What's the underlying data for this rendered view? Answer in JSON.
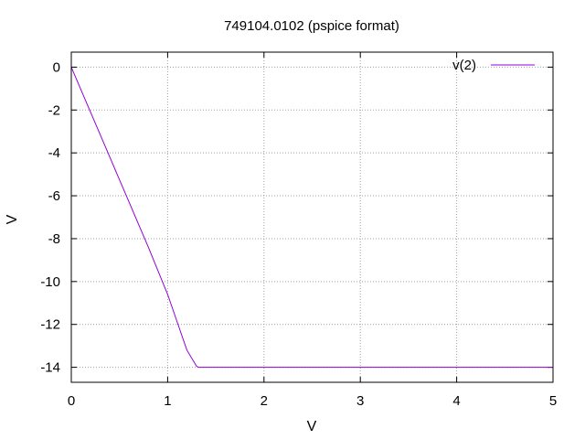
{
  "chart_data": {
    "type": "line",
    "title": "749104.0102 (pspice format)",
    "xlabel": "V",
    "ylabel": "V",
    "xlim": [
      0,
      5
    ],
    "ylim": [
      -14.7,
      0.7
    ],
    "x_ticks": [
      0,
      1,
      2,
      3,
      4,
      5
    ],
    "y_ticks": [
      0,
      -2,
      -4,
      -6,
      -8,
      -10,
      -12,
      -14
    ],
    "grid": true,
    "legend_position": "top-right",
    "series": [
      {
        "name": "v(2)",
        "color": "#9400d3",
        "x": [
          0,
          0.2,
          0.4,
          0.6,
          0.8,
          1.0,
          1.1,
          1.2,
          1.3,
          1.32,
          1.35,
          1.5,
          2,
          3,
          4,
          5
        ],
        "y": [
          0,
          -2.1,
          -4.2,
          -6.3,
          -8.4,
          -10.6,
          -11.9,
          -13.2,
          -13.95,
          -14.0,
          -14.0,
          -14.0,
          -14.0,
          -14.0,
          -14.0,
          -14.0
        ]
      }
    ]
  }
}
